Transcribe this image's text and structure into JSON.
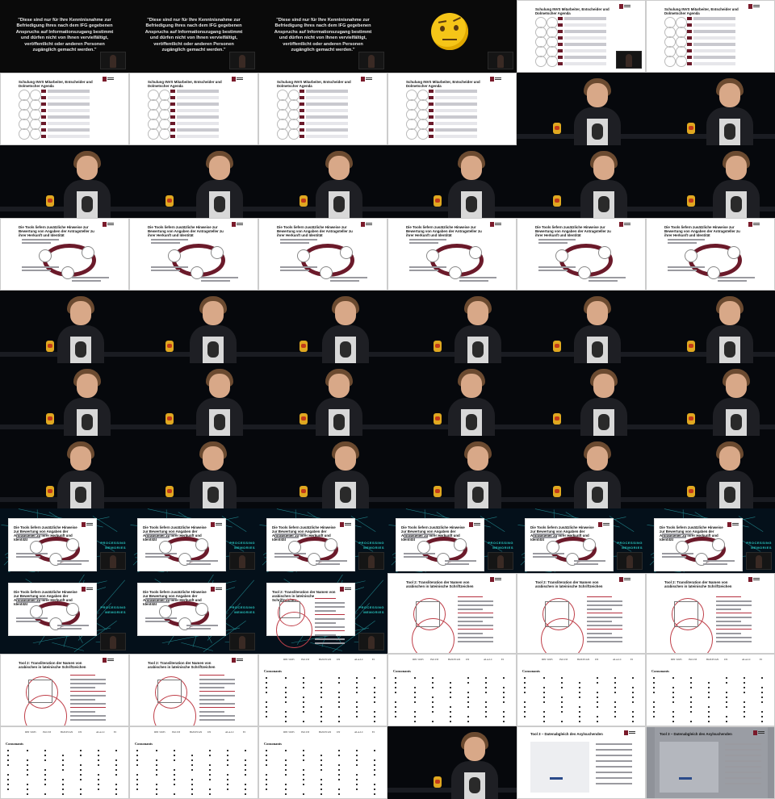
{
  "quote": {
    "text": "\"Diese sind nur für Ihre Kenntnisnahme zur Befriedigung Ihres nach dem IFG gegebenen Anspruchs auf Informationszugang bestimmt und dürfen nicht von Ihnen vervielfältigt, veröffentlicht oder anderen Personen zugänglich gemacht werden.\""
  },
  "slides": {
    "agenda": {
      "header": "",
      "title": "Schulung INVS Mitarbeiter, Entscheider und Dolmetscher Agenda"
    },
    "tools": {
      "header": "",
      "title": "Die Tools liefern zusätzliche Hinweise zur Bewertung von Angaben der Antragsteller zu ihrer Herkunft und Identität",
      "center_label": "Name ↔ Test"
    },
    "names": {
      "header": "",
      "title": "Tool 2: Transliteration der Namen von arabischen in lateinische Schriftzeichen"
    },
    "tool3": {
      "title": "Tool 3 – Datenabgleich des Asylsuchenden"
    }
  },
  "tables": {
    "title": "Consonants",
    "headers": [
      "DIN 31635",
      "ISO 233",
      "BGN/PCGN",
      "UN",
      "ALA-LC",
      "EI"
    ]
  },
  "overlay": {
    "label_line1": "PROCESSING",
    "label_line2": "MEMORIES"
  },
  "colors": {
    "accent": "#6b1a2a",
    "teal": "#29c9c3",
    "background": "#000000"
  },
  "icons": [
    "thinking-face-icon",
    "university-logo-icon",
    "lucky-cat-icon"
  ]
}
